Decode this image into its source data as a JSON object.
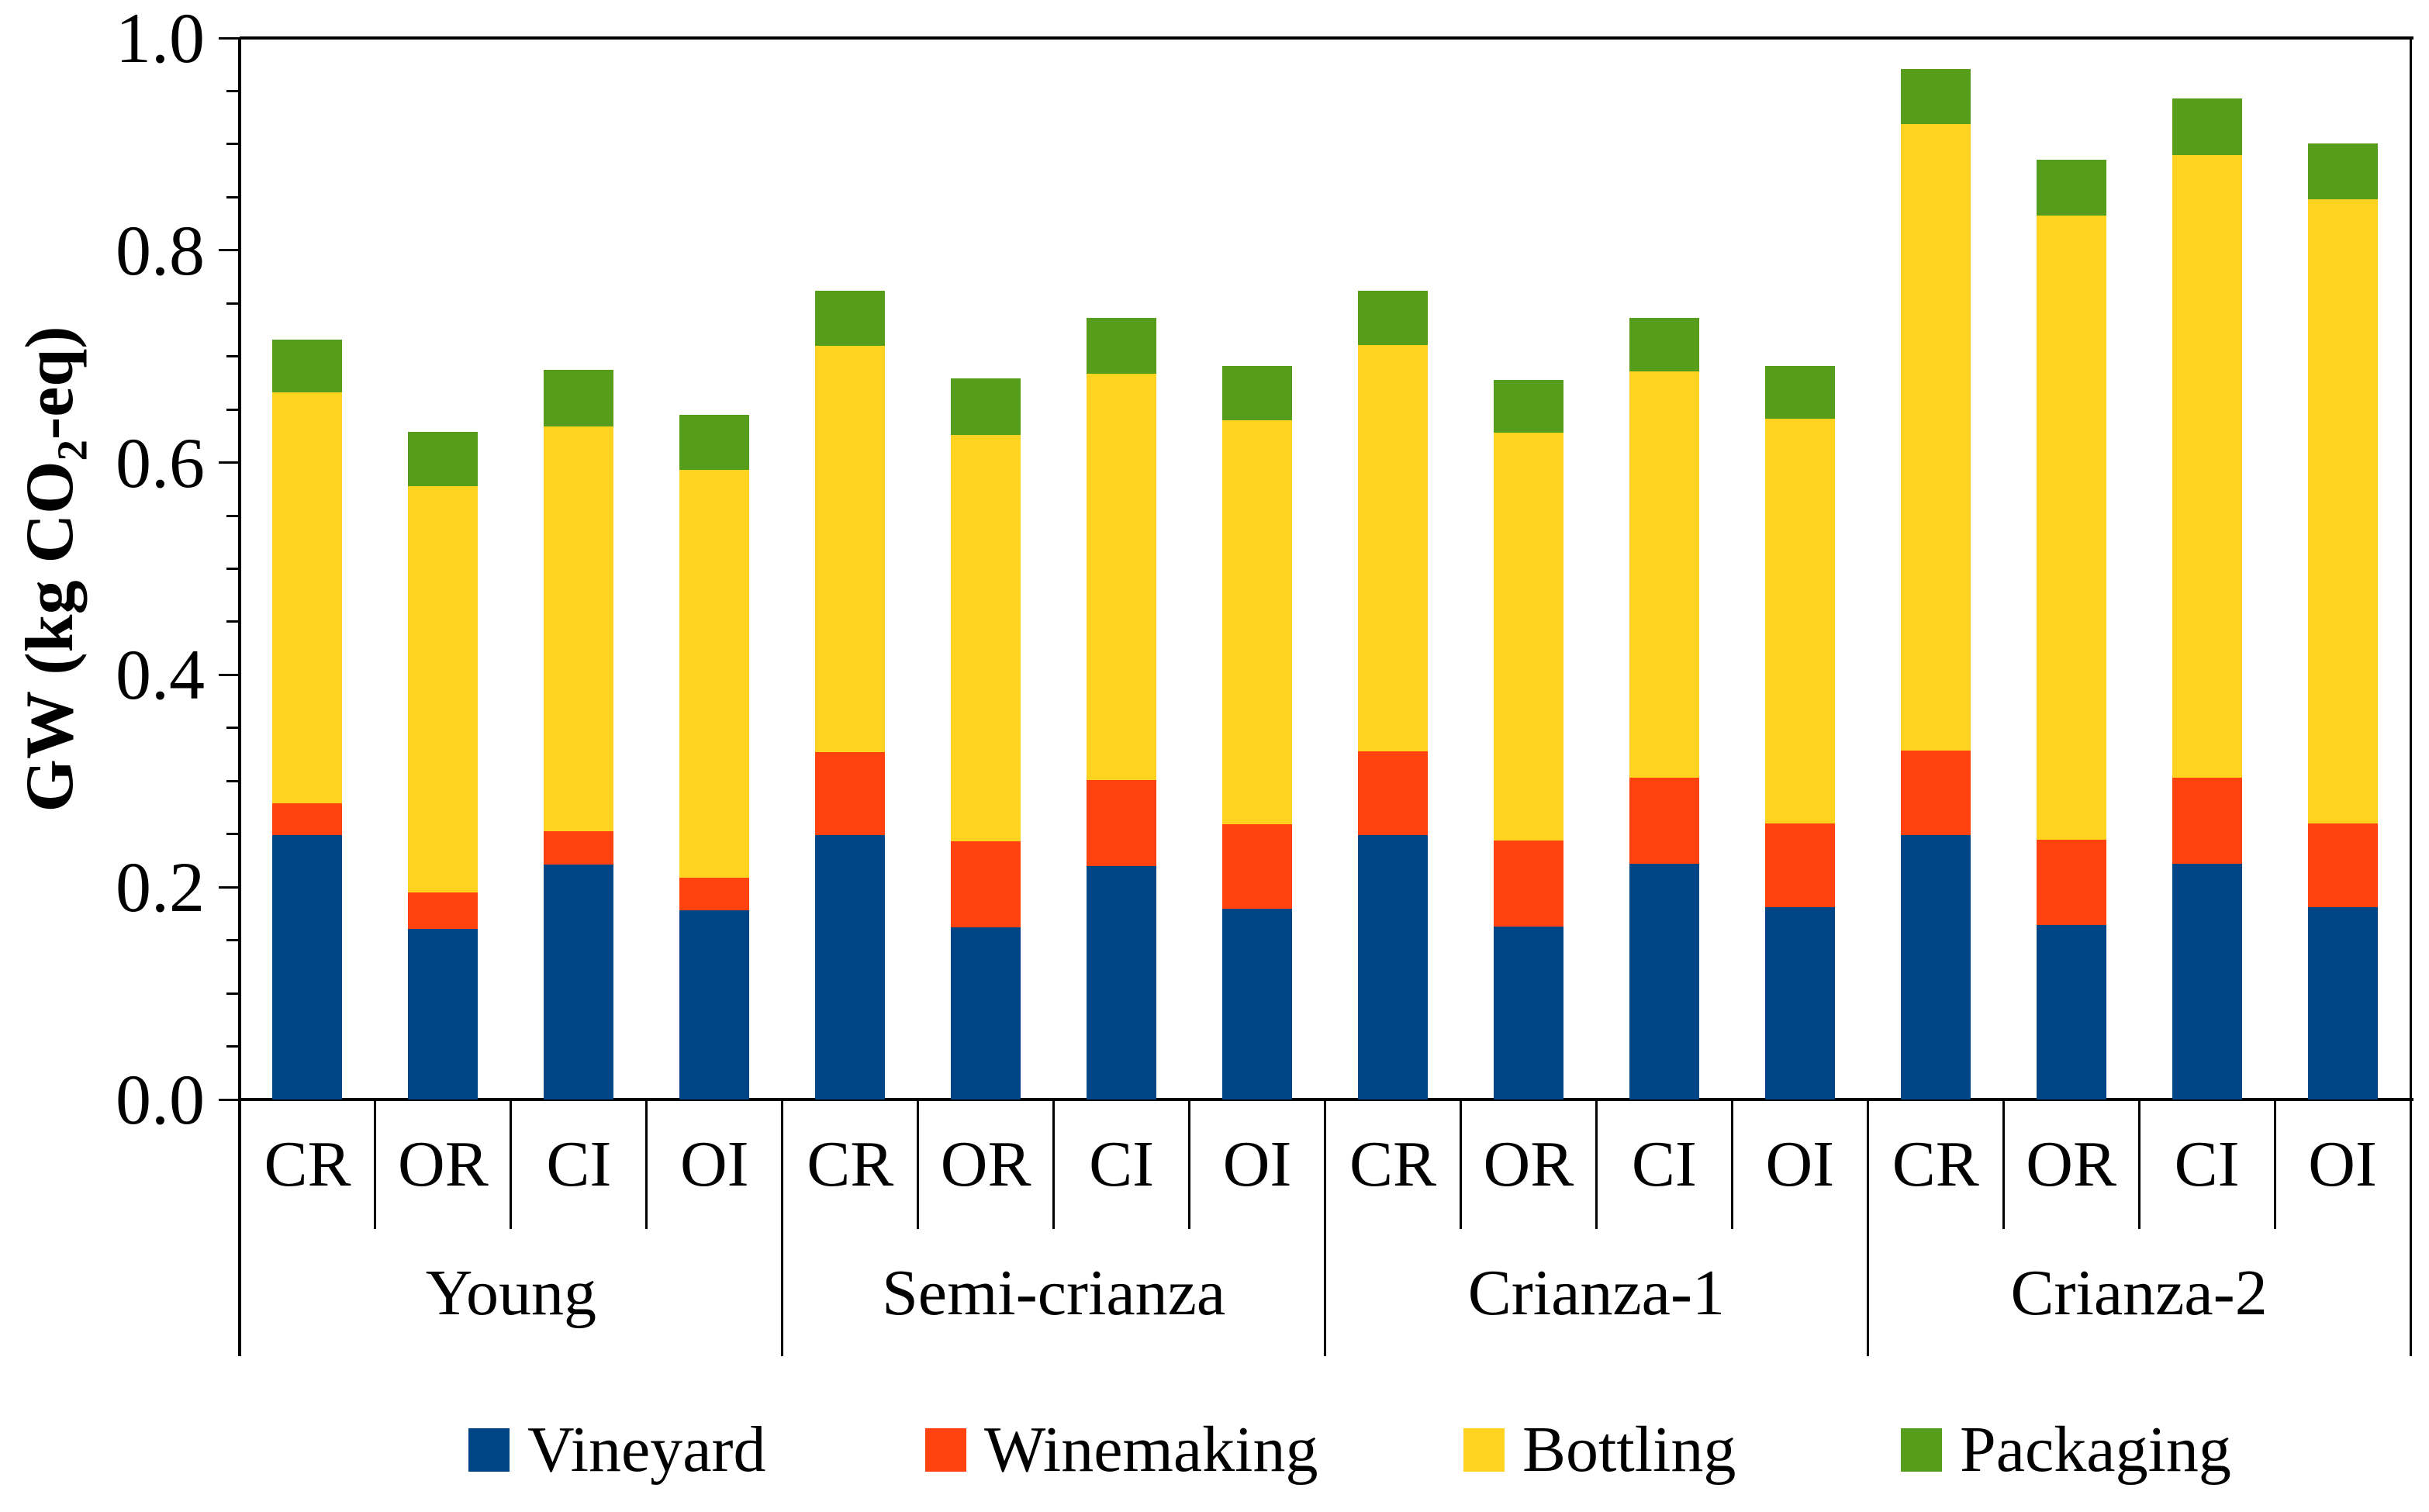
{
  "chart_data": {
    "type": "bar",
    "stacked": true,
    "title": "",
    "ylabel": "GW (kg CO2-eq)",
    "ylabel_parts": {
      "prefix": "GW (kg CO",
      "sub": "2",
      "suffix": "-eq)"
    },
    "ylim": [
      0.0,
      1.0
    ],
    "y_major_tick_labels": [
      "0.0",
      "0.2",
      "0.4",
      "0.6",
      "0.8",
      "1.0"
    ],
    "y_major_tick_values": [
      0.0,
      0.2,
      0.4,
      0.6,
      0.8,
      1.0
    ],
    "y_minor_tick_step": 0.05,
    "grid": "off",
    "groups": [
      "Young",
      "Semi-crianza",
      "Crianza-1",
      "Crianza-2"
    ],
    "scenarios": [
      "CR",
      "OR",
      "CI",
      "OI"
    ],
    "categories": [
      "CR",
      "OR",
      "CI",
      "OI",
      "CR",
      "OR",
      "CI",
      "OI",
      "CR",
      "OR",
      "CI",
      "OI",
      "CR",
      "OR",
      "CI",
      "OI"
    ],
    "series": [
      {
        "name": "Vineyard",
        "color": "#004586",
        "values": [
          0.249,
          0.161,
          0.221,
          0.178,
          0.249,
          0.162,
          0.22,
          0.18,
          0.249,
          0.163,
          0.222,
          0.181,
          0.249,
          0.164,
          0.222,
          0.181
        ]
      },
      {
        "name": "Winemaking",
        "color": "#FF420E",
        "values": [
          0.03,
          0.034,
          0.032,
          0.031,
          0.078,
          0.081,
          0.081,
          0.079,
          0.079,
          0.081,
          0.081,
          0.079,
          0.08,
          0.081,
          0.081,
          0.079
        ]
      },
      {
        "name": "Bottling",
        "color": "#FFD320",
        "values": [
          0.387,
          0.383,
          0.381,
          0.384,
          0.383,
          0.383,
          0.383,
          0.381,
          0.383,
          0.384,
          0.383,
          0.381,
          0.59,
          0.588,
          0.587,
          0.588
        ]
      },
      {
        "name": "Packaging",
        "color": "#579D1C",
        "values": [
          0.05,
          0.051,
          0.053,
          0.052,
          0.052,
          0.053,
          0.052,
          0.051,
          0.051,
          0.05,
          0.05,
          0.05,
          0.052,
          0.052,
          0.053,
          0.053
        ]
      }
    ],
    "totals": [
      0.716,
      0.629,
      0.687,
      0.645,
      0.762,
      0.679,
      0.736,
      0.691,
      0.762,
      0.678,
      0.736,
      0.691,
      0.971,
      0.885,
      0.943,
      0.901
    ],
    "legend": {
      "position": "bottom",
      "labels": [
        "Vineyard",
        "Winemaking",
        "Bottling",
        "Packaging"
      ]
    },
    "axis_color": "#000000",
    "background_color": "#FFFFFF"
  }
}
